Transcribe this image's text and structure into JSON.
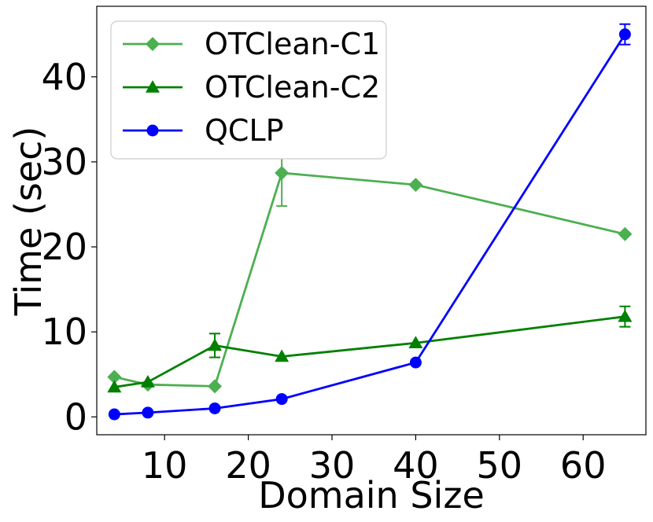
{
  "chart_data": {
    "type": "line",
    "title": "",
    "xlabel": "Domain Size",
    "ylabel": "Time (sec)",
    "xlim": [
      1.9,
      67.5
    ],
    "ylim": [
      -2.1,
      48.3
    ],
    "xticks": [
      10,
      20,
      30,
      40,
      50,
      60
    ],
    "yticks": [
      0,
      10,
      20,
      30,
      40
    ],
    "grid": false,
    "legend_position": "top-left",
    "series": [
      {
        "name": "OTClean-C1",
        "color": "#4caf50",
        "marker": "diamond",
        "x": [
          4,
          8,
          16,
          24,
          40,
          65
        ],
        "y": [
          4.7,
          3.8,
          3.6,
          28.7,
          27.3,
          21.5
        ],
        "err": [
          0,
          0,
          0,
          3.9,
          0,
          0
        ]
      },
      {
        "name": "OTClean-C2",
        "color": "#008000",
        "marker": "triangle",
        "x": [
          4,
          8,
          16,
          24,
          40,
          65
        ],
        "y": [
          3.5,
          4.1,
          8.4,
          7.1,
          8.7,
          11.8
        ],
        "err": [
          0,
          0,
          1.4,
          0,
          0,
          1.2
        ]
      },
      {
        "name": "QCLP",
        "color": "#0000ff",
        "marker": "circle",
        "x": [
          4,
          8,
          16,
          24,
          40,
          65
        ],
        "y": [
          0.3,
          0.5,
          1.0,
          2.1,
          6.4,
          45.0
        ],
        "err": [
          0,
          0,
          0,
          0,
          0,
          1.2
        ]
      }
    ]
  }
}
